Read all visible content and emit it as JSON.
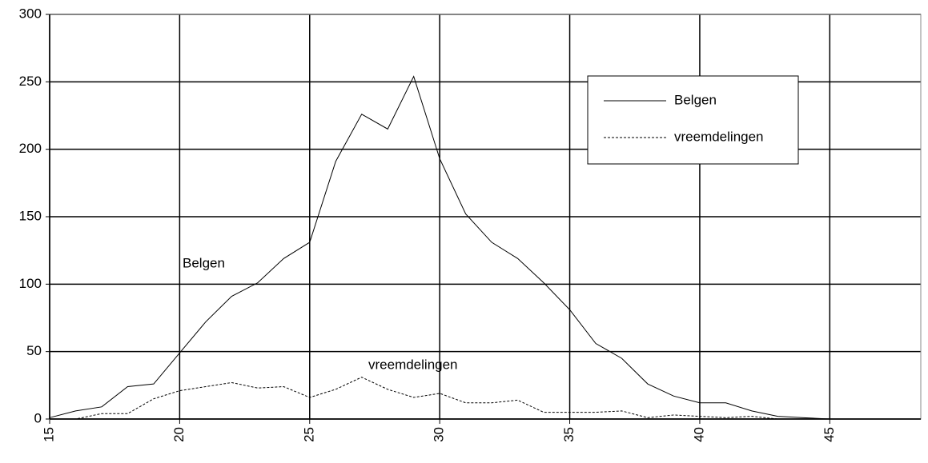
{
  "chart_data": {
    "type": "line",
    "x": [
      15,
      16,
      17,
      18,
      19,
      20,
      21,
      22,
      23,
      24,
      25,
      26,
      27,
      28,
      29,
      30,
      31,
      32,
      33,
      34,
      35,
      36,
      37,
      38,
      39,
      40,
      41,
      42,
      43,
      44,
      45,
      46,
      47,
      48
    ],
    "series": [
      {
        "name": "Belgen",
        "color": "#000000",
        "style": "solid",
        "values": [
          1,
          6,
          9,
          24,
          26,
          49,
          72,
          91,
          101,
          119,
          131,
          191,
          226,
          215,
          254,
          193,
          152,
          131,
          119,
          101,
          81,
          56,
          45,
          26,
          17,
          12,
          12,
          6,
          2,
          1,
          0,
          0,
          0,
          0
        ]
      },
      {
        "name": "vreemdelingen",
        "color": "#000000",
        "style": "dotted",
        "values": [
          0,
          0,
          4,
          4,
          15,
          21,
          24,
          27,
          23,
          24,
          16,
          22,
          31,
          22,
          16,
          19,
          12,
          12,
          14,
          5,
          5,
          5,
          6,
          1,
          3,
          2,
          1,
          2,
          0,
          0,
          0,
          0,
          0,
          0
        ]
      }
    ],
    "annotations": [
      "Belgen",
      "vreemdelingen"
    ],
    "xlim": [
      15,
      48.5
    ],
    "xticks": [
      15,
      20,
      25,
      30,
      35,
      40,
      45
    ],
    "ylim": [
      0,
      300
    ],
    "yticks": [
      0,
      50,
      100,
      150,
      200,
      250,
      300
    ],
    "grid": true,
    "legend": "upper right"
  }
}
